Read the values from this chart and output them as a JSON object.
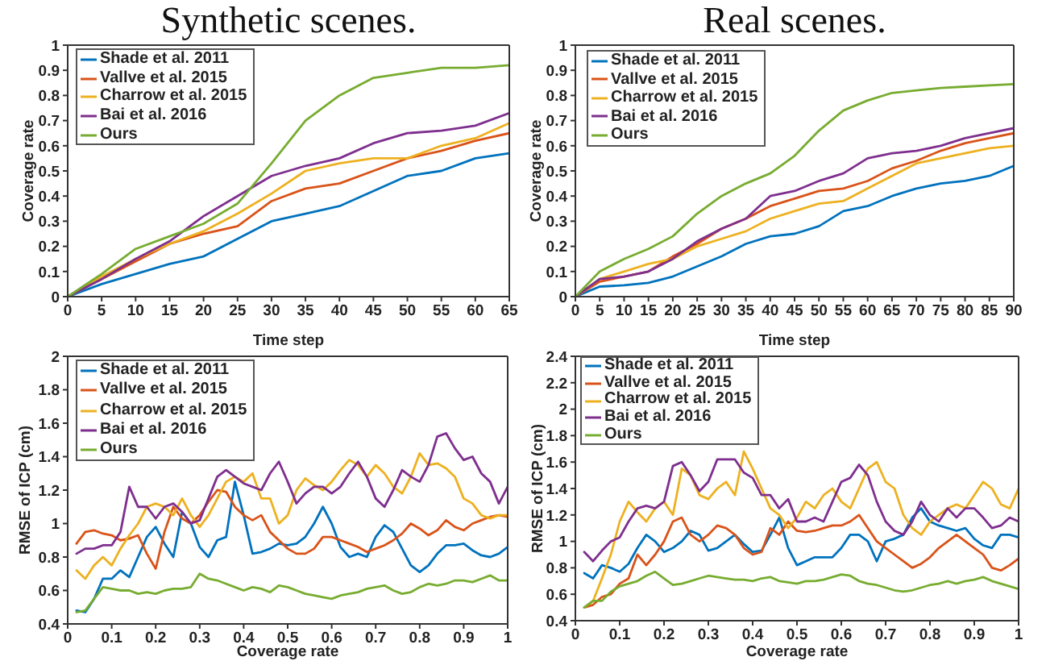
{
  "chart_data": [
    {
      "type": "line",
      "title": "Synthetic scenes.",
      "xlabel": "Time step",
      "ylabel": "Coverage rate",
      "legend": "top left",
      "x": [
        0,
        5,
        10,
        15,
        20,
        25,
        30,
        35,
        40,
        45,
        50,
        55,
        60,
        65
      ],
      "xlim": [
        0,
        65
      ],
      "xticks": [
        0,
        5,
        10,
        15,
        20,
        25,
        30,
        35,
        40,
        45,
        50,
        55,
        60,
        65
      ],
      "ylim": [
        0,
        1
      ],
      "yticks": [
        0,
        0.1,
        0.2,
        0.3,
        0.4,
        0.5,
        0.6,
        0.7,
        0.8,
        0.9,
        1
      ],
      "series": [
        {
          "name": "Shade et al. 2011",
          "color": "#0072bd",
          "values": [
            0,
            0.05,
            0.09,
            0.13,
            0.16,
            0.23,
            0.3,
            0.33,
            0.36,
            0.42,
            0.48,
            0.5,
            0.55,
            0.57
          ]
        },
        {
          "name": "Vallve et al. 2015",
          "color": "#d95319",
          "values": [
            0,
            0.07,
            0.14,
            0.21,
            0.25,
            0.28,
            0.38,
            0.43,
            0.45,
            0.5,
            0.55,
            0.58,
            0.62,
            0.65
          ]
        },
        {
          "name": "Charrow et al. 2015",
          "color": "#edb120",
          "values": [
            0,
            0.08,
            0.15,
            0.21,
            0.26,
            0.33,
            0.41,
            0.5,
            0.53,
            0.55,
            0.55,
            0.6,
            0.63,
            0.69
          ]
        },
        {
          "name": "Bai et al. 2016",
          "color": "#7e2f8e",
          "values": [
            0,
            0.07,
            0.15,
            0.22,
            0.32,
            0.4,
            0.48,
            0.52,
            0.55,
            0.61,
            0.65,
            0.66,
            0.68,
            0.73
          ]
        },
        {
          "name": "Ours",
          "color": "#77ac30",
          "values": [
            0,
            0.09,
            0.19,
            0.24,
            0.29,
            0.37,
            0.53,
            0.7,
            0.8,
            0.87,
            0.89,
            0.91,
            0.91,
            0.92
          ]
        }
      ]
    },
    {
      "type": "line",
      "title": "Real scenes.",
      "xlabel": "Time step",
      "ylabel": "Coverage rate",
      "legend": "top left",
      "x": [
        0,
        5,
        10,
        15,
        20,
        25,
        30,
        35,
        40,
        45,
        50,
        55,
        60,
        65,
        70,
        75,
        80,
        85,
        90
      ],
      "xlim": [
        0,
        90
      ],
      "xticks": [
        0,
        5,
        10,
        15,
        20,
        25,
        30,
        35,
        40,
        45,
        50,
        55,
        60,
        65,
        70,
        75,
        80,
        85,
        90
      ],
      "ylim": [
        0,
        1
      ],
      "yticks": [
        0,
        0.1,
        0.2,
        0.3,
        0.4,
        0.5,
        0.6,
        0.7,
        0.8,
        0.9,
        1
      ],
      "series": [
        {
          "name": "Shade et al. 2011",
          "color": "#0072bd",
          "values": [
            0,
            0.04,
            0.045,
            0.055,
            0.08,
            0.12,
            0.16,
            0.21,
            0.24,
            0.25,
            0.28,
            0.34,
            0.36,
            0.4,
            0.43,
            0.45,
            0.46,
            0.48,
            0.52
          ]
        },
        {
          "name": "Vallve et al. 2015",
          "color": "#d95319",
          "values": [
            0,
            0.06,
            0.08,
            0.1,
            0.16,
            0.21,
            0.27,
            0.31,
            0.36,
            0.39,
            0.42,
            0.43,
            0.46,
            0.51,
            0.54,
            0.58,
            0.61,
            0.63,
            0.65
          ]
        },
        {
          "name": "Charrow et al. 2015",
          "color": "#edb120",
          "values": [
            0,
            0.07,
            0.1,
            0.13,
            0.15,
            0.2,
            0.23,
            0.26,
            0.31,
            0.34,
            0.37,
            0.38,
            0.43,
            0.48,
            0.53,
            0.55,
            0.57,
            0.59,
            0.6
          ]
        },
        {
          "name": "Bai et al. 2016",
          "color": "#7e2f8e",
          "values": [
            0,
            0.07,
            0.08,
            0.1,
            0.15,
            0.22,
            0.27,
            0.31,
            0.4,
            0.42,
            0.46,
            0.49,
            0.55,
            0.57,
            0.58,
            0.6,
            0.63,
            0.65,
            0.67
          ]
        },
        {
          "name": "Ours",
          "color": "#77ac30",
          "values": [
            0,
            0.1,
            0.15,
            0.19,
            0.24,
            0.33,
            0.4,
            0.45,
            0.49,
            0.56,
            0.66,
            0.74,
            0.78,
            0.81,
            0.82,
            0.83,
            0.835,
            0.84,
            0.845
          ]
        }
      ]
    },
    {
      "type": "line",
      "xlabel": "Coverage rate",
      "ylabel": "RMSE of ICP (cm)",
      "legend": "top left",
      "x": [
        0.02,
        0.04,
        0.06,
        0.08,
        0.1,
        0.12,
        0.14,
        0.16,
        0.18,
        0.2,
        0.22,
        0.24,
        0.26,
        0.28,
        0.3,
        0.32,
        0.34,
        0.36,
        0.38,
        0.4,
        0.42,
        0.44,
        0.46,
        0.48,
        0.5,
        0.52,
        0.54,
        0.56,
        0.58,
        0.6,
        0.62,
        0.64,
        0.66,
        0.68,
        0.7,
        0.72,
        0.74,
        0.76,
        0.78,
        0.8,
        0.82,
        0.84,
        0.86,
        0.88,
        0.9,
        0.92,
        0.94,
        0.96,
        0.98,
        1
      ],
      "xlim": [
        0,
        1
      ],
      "xticks": [
        0,
        0.1,
        0.2,
        0.3,
        0.4,
        0.5,
        0.6,
        0.7,
        0.8,
        0.9,
        1
      ],
      "ylim": [
        0.4,
        2
      ],
      "yticks": [
        0.4,
        0.6,
        0.8,
        1,
        1.2,
        1.4,
        1.6,
        1.8,
        2
      ],
      "series": [
        {
          "name": "Shade et al. 2011",
          "color": "#0072bd",
          "values": [
            0.48,
            0.47,
            0.55,
            0.67,
            0.67,
            0.72,
            0.68,
            0.8,
            0.92,
            0.98,
            0.88,
            0.8,
            1.07,
            1.0,
            0.86,
            0.8,
            0.9,
            0.92,
            1.25,
            1.05,
            0.82,
            0.83,
            0.85,
            0.88,
            0.87,
            0.88,
            0.92,
            1.0,
            1.1,
            1.0,
            0.86,
            0.8,
            0.82,
            0.8,
            0.92,
            0.99,
            0.95,
            0.85,
            0.75,
            0.71,
            0.75,
            0.82,
            0.87,
            0.87,
            0.88,
            0.84,
            0.81,
            0.8,
            0.82,
            0.86
          ]
        },
        {
          "name": "Vallve et al. 2015",
          "color": "#d95319",
          "values": [
            0.88,
            0.95,
            0.96,
            0.94,
            0.93,
            0.9,
            0.91,
            0.93,
            0.82,
            0.73,
            0.95,
            1.1,
            1.03,
            1.0,
            1.05,
            1.13,
            1.2,
            1.19,
            1.1,
            1.05,
            1.02,
            1.05,
            0.95,
            0.9,
            0.85,
            0.82,
            0.82,
            0.85,
            0.92,
            0.92,
            0.9,
            0.88,
            0.86,
            0.83,
            0.85,
            0.87,
            0.9,
            0.94,
            1.0,
            0.97,
            0.93,
            0.96,
            1.02,
            0.98,
            0.96,
            1.0,
            1.02,
            1.04,
            1.05,
            1.04
          ]
        },
        {
          "name": "Charrow et al. 2015",
          "color": "#edb120",
          "values": [
            0.72,
            0.67,
            0.75,
            0.8,
            0.75,
            0.85,
            0.93,
            1.0,
            1.1,
            1.12,
            1.1,
            1.05,
            1.15,
            1.05,
            0.98,
            1.05,
            1.15,
            1.25,
            1.28,
            1.25,
            1.3,
            1.15,
            1.15,
            1.0,
            1.05,
            1.2,
            1.27,
            1.23,
            1.2,
            1.25,
            1.32,
            1.38,
            1.35,
            1.28,
            1.35,
            1.3,
            1.22,
            1.18,
            1.28,
            1.42,
            1.35,
            1.36,
            1.33,
            1.28,
            1.15,
            1.12,
            1.05,
            1.03,
            1.05,
            1.05
          ]
        },
        {
          "name": "Bai et al. 2016",
          "color": "#7e2f8e",
          "values": [
            0.82,
            0.85,
            0.85,
            0.87,
            0.87,
            0.95,
            1.22,
            1.1,
            1.1,
            1.03,
            1.1,
            1.12,
            1.07,
            1.0,
            1.02,
            1.15,
            1.28,
            1.32,
            1.28,
            1.24,
            1.22,
            1.2,
            1.3,
            1.37,
            1.25,
            1.12,
            1.18,
            1.22,
            1.22,
            1.18,
            1.22,
            1.3,
            1.37,
            1.28,
            1.15,
            1.1,
            1.2,
            1.32,
            1.28,
            1.25,
            1.35,
            1.52,
            1.54,
            1.45,
            1.38,
            1.4,
            1.3,
            1.25,
            1.12,
            1.22
          ]
        },
        {
          "name": "Ours",
          "color": "#77ac30",
          "values": [
            0.47,
            0.48,
            0.55,
            0.62,
            0.61,
            0.6,
            0.6,
            0.58,
            0.59,
            0.58,
            0.6,
            0.61,
            0.61,
            0.62,
            0.7,
            0.67,
            0.66,
            0.64,
            0.62,
            0.6,
            0.62,
            0.61,
            0.59,
            0.63,
            0.62,
            0.6,
            0.58,
            0.57,
            0.56,
            0.55,
            0.57,
            0.58,
            0.59,
            0.61,
            0.62,
            0.63,
            0.6,
            0.58,
            0.59,
            0.62,
            0.64,
            0.63,
            0.64,
            0.66,
            0.66,
            0.65,
            0.67,
            0.69,
            0.66,
            0.66
          ]
        }
      ]
    },
    {
      "type": "line",
      "xlabel": "Coverage rate",
      "ylabel": "RMSE of ICP (cm)",
      "legend": "top left",
      "x": [
        0.02,
        0.04,
        0.06,
        0.08,
        0.1,
        0.12,
        0.14,
        0.16,
        0.18,
        0.2,
        0.22,
        0.24,
        0.26,
        0.28,
        0.3,
        0.32,
        0.34,
        0.36,
        0.38,
        0.4,
        0.42,
        0.44,
        0.46,
        0.48,
        0.5,
        0.52,
        0.54,
        0.56,
        0.58,
        0.6,
        0.62,
        0.64,
        0.66,
        0.68,
        0.7,
        0.72,
        0.74,
        0.76,
        0.78,
        0.8,
        0.82,
        0.84,
        0.86,
        0.88,
        0.9,
        0.92,
        0.94,
        0.96,
        0.98,
        1
      ],
      "xlim": [
        0,
        1
      ],
      "xticks": [
        0,
        0.1,
        0.2,
        0.3,
        0.4,
        0.5,
        0.6,
        0.7,
        0.8,
        0.9,
        1
      ],
      "ylim": [
        0.4,
        2.4
      ],
      "yticks": [
        0.4,
        0.6,
        0.8,
        1,
        1.2,
        1.4,
        1.6,
        1.8,
        2,
        2.2,
        2.4
      ],
      "series": [
        {
          "name": "Shade et al. 2011",
          "color": "#0072bd",
          "values": [
            0.76,
            0.72,
            0.82,
            0.8,
            0.77,
            0.83,
            0.95,
            1.05,
            1.0,
            0.92,
            0.95,
            1.0,
            1.08,
            1.05,
            0.93,
            0.95,
            1.0,
            1.05,
            0.98,
            0.92,
            0.93,
            1.05,
            1.18,
            0.95,
            0.82,
            0.85,
            0.88,
            0.88,
            0.88,
            0.95,
            1.05,
            1.05,
            1.0,
            0.85,
            1.0,
            1.02,
            1.05,
            1.18,
            1.25,
            1.15,
            1.12,
            1.1,
            1.08,
            1.1,
            1.02,
            0.97,
            0.95,
            1.05,
            1.05,
            1.03
          ]
        },
        {
          "name": "Vallve et al. 2015",
          "color": "#d95319",
          "values": [
            0.5,
            0.52,
            0.58,
            0.6,
            0.68,
            0.72,
            0.9,
            0.82,
            0.9,
            1.0,
            1.15,
            1.18,
            1.05,
            1.0,
            1.05,
            1.12,
            1.1,
            1.05,
            0.95,
            0.9,
            0.92,
            1.1,
            1.05,
            1.15,
            1.08,
            1.07,
            1.08,
            1.1,
            1.12,
            1.12,
            1.15,
            1.2,
            1.1,
            1.0,
            0.95,
            0.9,
            0.85,
            0.8,
            0.83,
            0.88,
            0.95,
            1.0,
            1.05,
            1.0,
            0.95,
            0.9,
            0.8,
            0.78,
            0.82,
            0.87
          ]
        },
        {
          "name": "Charrow et al. 2015",
          "color": "#edb120",
          "values": [
            0.5,
            0.55,
            0.72,
            0.9,
            1.15,
            1.3,
            1.22,
            1.15,
            1.25,
            1.3,
            1.2,
            1.55,
            1.5,
            1.35,
            1.32,
            1.4,
            1.45,
            1.35,
            1.68,
            1.55,
            1.4,
            1.25,
            1.2,
            1.1,
            1.18,
            1.3,
            1.25,
            1.35,
            1.4,
            1.3,
            1.25,
            1.4,
            1.55,
            1.6,
            1.45,
            1.4,
            1.2,
            1.1,
            1.05,
            1.15,
            1.2,
            1.25,
            1.28,
            1.25,
            1.35,
            1.45,
            1.4,
            1.28,
            1.25,
            1.4
          ]
        },
        {
          "name": "Bai et al. 2016",
          "color": "#7e2f8e",
          "values": [
            0.92,
            0.85,
            0.93,
            1.0,
            1.03,
            1.15,
            1.25,
            1.27,
            1.25,
            1.3,
            1.57,
            1.6,
            1.5,
            1.38,
            1.45,
            1.62,
            1.62,
            1.62,
            1.52,
            1.48,
            1.35,
            1.35,
            1.25,
            1.32,
            1.15,
            1.15,
            1.18,
            1.15,
            1.3,
            1.45,
            1.48,
            1.58,
            1.5,
            1.3,
            1.15,
            1.08,
            1.05,
            1.15,
            1.3,
            1.2,
            1.15,
            1.25,
            1.18,
            1.25,
            1.25,
            1.18,
            1.1,
            1.12,
            1.18,
            1.15
          ]
        },
        {
          "name": "Ours",
          "color": "#77ac30",
          "values": [
            0.5,
            0.55,
            0.55,
            0.62,
            0.66,
            0.68,
            0.7,
            0.74,
            0.77,
            0.72,
            0.67,
            0.68,
            0.7,
            0.72,
            0.74,
            0.73,
            0.72,
            0.71,
            0.71,
            0.7,
            0.72,
            0.73,
            0.7,
            0.69,
            0.68,
            0.7,
            0.7,
            0.71,
            0.73,
            0.75,
            0.74,
            0.7,
            0.68,
            0.67,
            0.65,
            0.63,
            0.62,
            0.63,
            0.65,
            0.67,
            0.68,
            0.7,
            0.68,
            0.7,
            0.71,
            0.73,
            0.7,
            0.68,
            0.66,
            0.64
          ]
        }
      ]
    }
  ]
}
